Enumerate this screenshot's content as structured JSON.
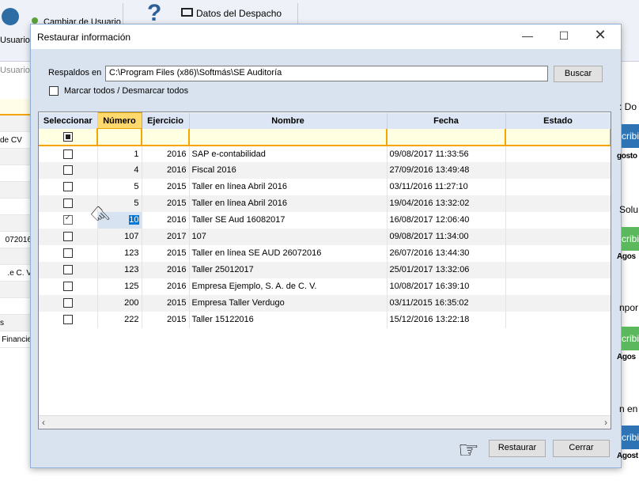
{
  "background": {
    "toolbar": {
      "usuarios": "Usuarios",
      "cambiar_usuario": "Cambiar de Usuario",
      "usuario": "Usuario",
      "datos_despacho": "Datos del Despacho"
    },
    "left_rows": [
      "",
      "de CV",
      "",
      "",
      "",
      "",
      "",
      "072016",
      "",
      "e C. V.",
      "",
      "",
      "s",
      "Financie"
    ],
    "right_items": [
      {
        "text": ": Do",
        "kind": "text"
      },
      {
        "text": "cribi",
        "kind": "blue"
      },
      {
        "text": "gosto",
        "kind": "bold"
      },
      {
        "text": "Solu",
        "kind": "text"
      },
      {
        "text": "cribi",
        "kind": "green"
      },
      {
        "text": "Agos",
        "kind": "bold"
      },
      {
        "text": "npor",
        "kind": "text"
      },
      {
        "text": "cribi",
        "kind": "green"
      },
      {
        "text": "Agos",
        "kind": "bold"
      },
      {
        "text": "n en",
        "kind": "text"
      },
      {
        "text": "cribi",
        "kind": "blue"
      },
      {
        "text": "Agost",
        "kind": "bold"
      }
    ]
  },
  "dialog": {
    "title": "Restaurar información",
    "backups_label": "Respaldos en",
    "backups_path": "C:\\Program Files (x86)\\Softmás\\SE Auditoría",
    "search_button": "Buscar",
    "toggle_all_label": "Marcar todos / Desmarcar todos",
    "restore_button": "Restaurar",
    "close_button": "Cerrar",
    "columns": [
      "Seleccionar",
      "Número",
      "Ejercicio",
      "Nombre",
      "Fecha",
      "Estado"
    ],
    "rows": [
      {
        "checked": false,
        "numero": "1",
        "ejercicio": "2016",
        "nombre": "SAP e-contabilidad",
        "fecha": "09/08/2017 11:33:56",
        "estado": ""
      },
      {
        "checked": false,
        "numero": "4",
        "ejercicio": "2016",
        "nombre": "Fiscal 2016",
        "fecha": "27/09/2016 13:49:48",
        "estado": ""
      },
      {
        "checked": false,
        "numero": "5",
        "ejercicio": "2015",
        "nombre": "Taller en línea Abril 2016",
        "fecha": "03/11/2016 11:27:10",
        "estado": ""
      },
      {
        "checked": false,
        "numero": "5",
        "ejercicio": "2015",
        "nombre": "Taller en línea Abril 2016",
        "fecha": "19/04/2016 13:32:02",
        "estado": ""
      },
      {
        "checked": true,
        "numero": "10",
        "ejercicio": "2016",
        "nombre": "Taller SE Aud 16082017",
        "fecha": "16/08/2017 12:06:40",
        "estado": ""
      },
      {
        "checked": false,
        "numero": "107",
        "ejercicio": "2017",
        "nombre": "107",
        "fecha": "09/08/2017 11:34:00",
        "estado": ""
      },
      {
        "checked": false,
        "numero": "123",
        "ejercicio": "2015",
        "nombre": "Taller en línea SE AUD 26072016",
        "fecha": "26/07/2016 13:44:30",
        "estado": ""
      },
      {
        "checked": false,
        "numero": "123",
        "ejercicio": "2016",
        "nombre": "Taller 25012017",
        "fecha": "25/01/2017 13:32:06",
        "estado": ""
      },
      {
        "checked": false,
        "numero": "125",
        "ejercicio": "2016",
        "nombre": "Empresa Ejemplo, S. A. de C. V.",
        "fecha": "10/08/2017 16:39:10",
        "estado": ""
      },
      {
        "checked": false,
        "numero": "200",
        "ejercicio": "2015",
        "nombre": "Empresa Taller Verdugo",
        "fecha": "03/11/2015 16:35:02",
        "estado": ""
      },
      {
        "checked": false,
        "numero": "222",
        "ejercicio": "2015",
        "nombre": "Taller 15122016",
        "fecha": "15/12/2016 13:22:18",
        "estado": ""
      }
    ]
  },
  "colors": {
    "sorted_header": "#ffd86e",
    "filter_row": "#ffffe1",
    "accent_orange": "#f5a500",
    "selection": "#0078d7",
    "dialog_bg": "#d9e3ef",
    "blue_btn": "#2e74b5",
    "green_btn": "#5cb85c"
  }
}
